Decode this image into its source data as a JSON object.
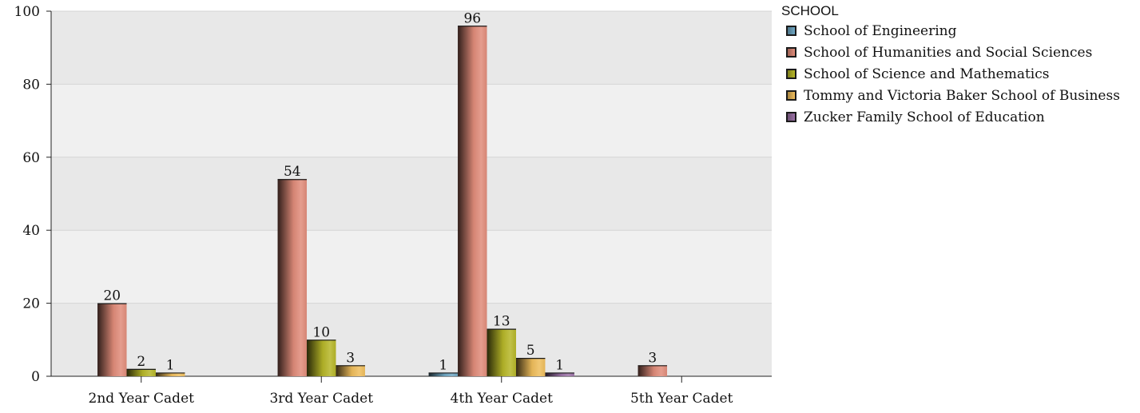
{
  "chart_data": {
    "type": "bar",
    "categories": [
      "2nd Year Cadet",
      "3rd Year Cadet",
      "4th Year Cadet",
      "5th Year Cadet"
    ],
    "series": [
      {
        "name": "School of Engineering",
        "color": "#6fa7c4",
        "values": [
          null,
          null,
          1,
          null
        ]
      },
      {
        "name": "School of Humanities and Social Sciences",
        "color": "#e08c7a",
        "values": [
          20,
          54,
          96,
          3
        ]
      },
      {
        "name": "School of Science and Mathematics",
        "color": "#b6b628",
        "values": [
          2,
          10,
          13,
          null
        ]
      },
      {
        "name": "Tommy and Victoria Baker School of Business",
        "color": "#efbd5c",
        "values": [
          1,
          3,
          5,
          null
        ]
      },
      {
        "name": "Zucker Family School of Education",
        "color": "#9b72a6",
        "values": [
          null,
          null,
          1,
          null
        ]
      }
    ],
    "legend_title": "SCHOOL",
    "yticks": [
      0,
      20,
      40,
      60,
      80,
      100
    ],
    "ylim": [
      0,
      100
    ],
    "grid": true,
    "legend_position": "right"
  }
}
